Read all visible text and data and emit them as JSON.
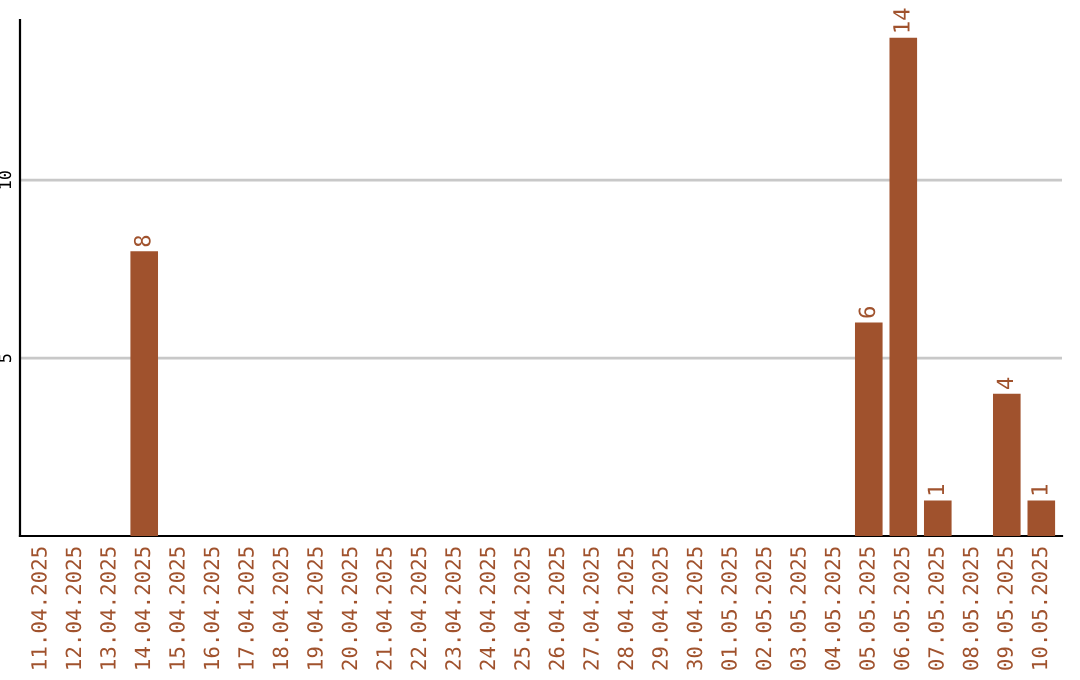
{
  "chart_data": {
    "type": "bar",
    "categories": [
      "11.04.2025",
      "12.04.2025",
      "13.04.2025",
      "14.04.2025",
      "15.04.2025",
      "16.04.2025",
      "17.04.2025",
      "18.04.2025",
      "19.04.2025",
      "20.04.2025",
      "21.04.2025",
      "22.04.2025",
      "23.04.2025",
      "24.04.2025",
      "25.04.2025",
      "26.04.2025",
      "27.04.2025",
      "28.04.2025",
      "29.04.2025",
      "30.04.2025",
      "01.05.2025",
      "02.05.2025",
      "03.05.2025",
      "04.05.2025",
      "05.05.2025",
      "06.05.2025",
      "07.05.2025",
      "08.05.2025",
      "09.05.2025",
      "10.05.2025"
    ],
    "values": [
      0,
      0,
      0,
      8,
      0,
      0,
      0,
      0,
      0,
      0,
      0,
      0,
      0,
      0,
      0,
      0,
      0,
      0,
      0,
      0,
      0,
      0,
      0,
      0,
      6,
      14,
      1,
      0,
      4,
      1
    ],
    "value_labels": [
      null,
      null,
      null,
      "8",
      null,
      null,
      null,
      null,
      null,
      null,
      null,
      null,
      null,
      null,
      null,
      null,
      null,
      null,
      null,
      null,
      null,
      null,
      null,
      null,
      "6",
      "14",
      "1",
      null,
      "4",
      "1"
    ],
    "color": "#a0522d",
    "ylim": [
      0,
      14.5
    ],
    "yticks": [
      5,
      10
    ],
    "grid": "y"
  }
}
